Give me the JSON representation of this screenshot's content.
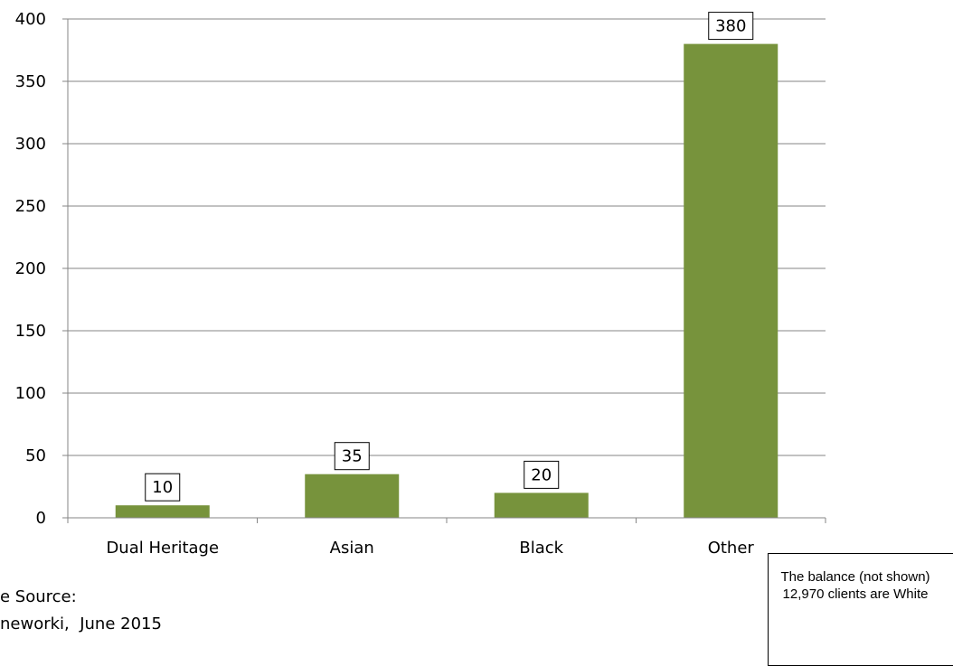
{
  "chart_data": {
    "type": "bar",
    "categories": [
      "Dual Heritage",
      "Asian",
      "Black",
      "Other"
    ],
    "values": [
      10,
      35,
      20,
      380
    ],
    "data_labels": [
      "10",
      "35",
      "20",
      "380"
    ],
    "ylim": [
      0,
      400
    ],
    "yticks": [
      0,
      50,
      100,
      150,
      200,
      250,
      300,
      350,
      400
    ],
    "grid": true,
    "legend": "none",
    "bar_color": "#77933C"
  },
  "source": {
    "line1": "e Source:",
    "line2": "neworki,  June 2015"
  },
  "note": "The balance (not shown) 12,970 clients are White"
}
